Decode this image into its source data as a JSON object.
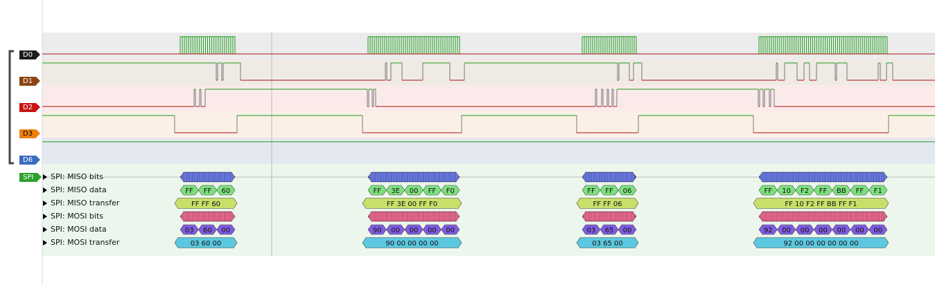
{
  "channels": [
    {
      "id": "D0",
      "tag_color": "#1c1c1c",
      "tag_text_color": "#ffffff"
    },
    {
      "id": "D1",
      "tag_color": "#8b4513",
      "tag_text_color": "#ffffff"
    },
    {
      "id": "D2",
      "tag_color": "#c81414",
      "tag_text_color": "#ffffff"
    },
    {
      "id": "D3",
      "tag_color": "#f07f0a",
      "tag_text_color": "#000000"
    },
    {
      "id": "D6",
      "tag_color": "#3a6bbf",
      "tag_text_color": "#ffffff"
    }
  ],
  "analyzer": {
    "id": "SPI",
    "tag_color": "#2ca02c",
    "tag_text_color": "#ffffff"
  },
  "annotation_rows": [
    "SPI: MISO bits",
    "SPI: MISO data",
    "SPI: MISO transfer",
    "SPI: MOSI bits",
    "SPI: MOSI data",
    "SPI: MOSI transfer"
  ],
  "transfers": [
    {
      "miso_bytes": [
        "FF",
        "FF",
        "60"
      ],
      "miso_transfer": "FF FF 60",
      "mosi_bytes": [
        "03",
        "60",
        "00"
      ],
      "mosi_transfer": "03 60 00"
    },
    {
      "miso_bytes": [
        "FF",
        "3E",
        "00",
        "FF",
        "F0"
      ],
      "miso_transfer": "FF 3E 00 FF F0",
      "mosi_bytes": [
        "90",
        "00",
        "00",
        "00",
        "00"
      ],
      "mosi_transfer": "90 00 00 00 00"
    },
    {
      "miso_bytes": [
        "FF",
        "FF",
        "06"
      ],
      "miso_transfer": "FF FF 06",
      "mosi_bytes": [
        "03",
        "65",
        "00"
      ],
      "mosi_transfer": "03 65 00"
    },
    {
      "miso_bytes": [
        "FF",
        "10",
        "F2",
        "FF",
        "BB",
        "FF",
        "F1"
      ],
      "miso_transfer": "FF 10 F2 FF BB FF F1",
      "mosi_bytes": [
        "92",
        "00",
        "00",
        "00",
        "00",
        "00",
        "00"
      ],
      "mosi_transfer": "92 00 00 00 00 00 00"
    }
  ],
  "colors": {
    "miso_bits": "#3f51c8",
    "miso_data": "#7ee07e",
    "miso_transfer": "#c8e06a",
    "mosi_bits": "#d0406a",
    "mosi_data": "#7f5ce0",
    "mosi_transfer": "#5cc8e0",
    "signal_high": "#1a9a1a",
    "signal_low": "#b01010"
  }
}
